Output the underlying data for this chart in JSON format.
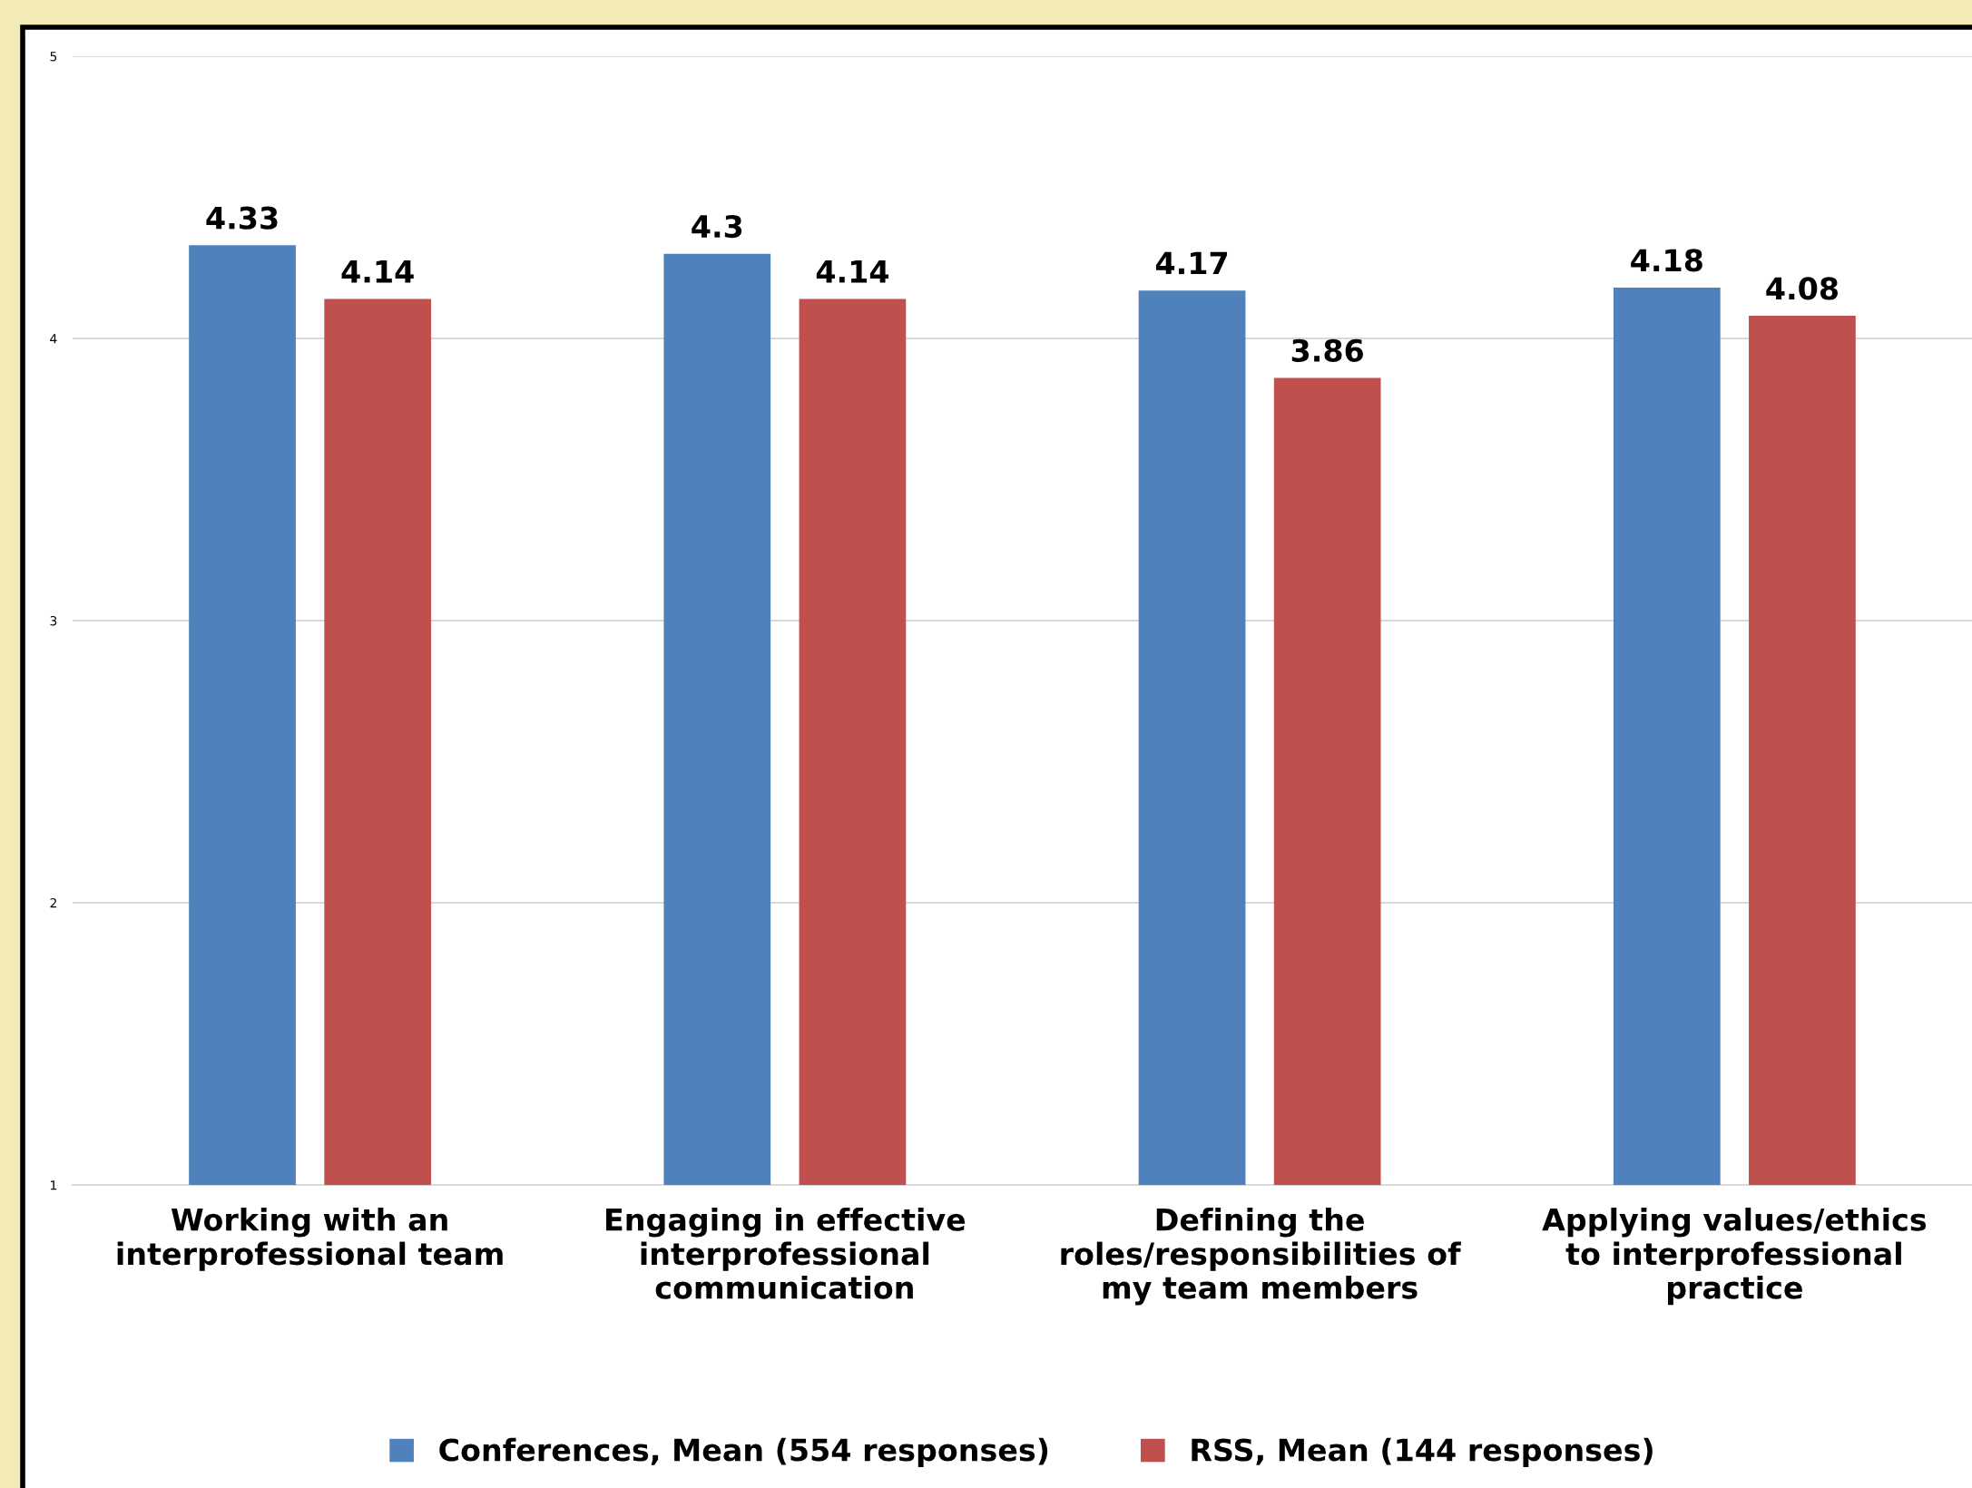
{
  "chart_data": {
    "type": "bar",
    "categories": [
      "Working with an\ninterprofessional team",
      "Engaging in effective\ninterprofessional\ncommunication",
      "Defining the\nroles/responsibilities of\nmy team members",
      "Applying values/ethics\nto interprofessional\npractice"
    ],
    "series": [
      {
        "name": "Conferences, Mean (554 responses)",
        "color": "#4f81bd",
        "values": [
          4.33,
          4.3,
          4.17,
          4.18
        ]
      },
      {
        "name": "RSS, Mean (144 responses)",
        "color": "#c0504d",
        "values": [
          4.14,
          4.14,
          3.86,
          4.08
        ]
      }
    ],
    "ylim": [
      1,
      5
    ],
    "yticks": [
      1,
      2,
      3,
      4,
      5
    ],
    "grid": "y",
    "data_labels": true,
    "legend": "bottom"
  }
}
